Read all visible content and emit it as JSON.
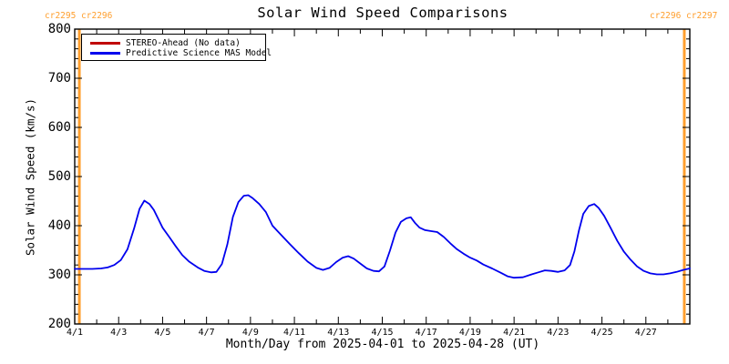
{
  "header": {
    "title": "Solar Wind Speed Comparisons",
    "cr_left": "cr2295 cr2296",
    "cr_right": "cr2296 cr2297",
    "cr_color": "#ff9f2e"
  },
  "axes": {
    "xlabel": "Month/Day from 2025-04-01 to 2025-04-28 (UT)",
    "ylabel": "Solar Wind Speed (km/s)",
    "y_ticks": [
      200,
      300,
      400,
      500,
      600,
      700,
      800
    ],
    "y_minor_step": 20,
    "x_tick_labels": [
      "4/1",
      "4/3",
      "4/5",
      "4/7",
      "4/9",
      "4/11",
      "4/13",
      "4/15",
      "4/17",
      "4/19",
      "4/21",
      "4/23",
      "4/25",
      "4/27"
    ],
    "x_tick_days": [
      1,
      3,
      5,
      7,
      9,
      11,
      13,
      15,
      17,
      19,
      21,
      23,
      25,
      27
    ],
    "frame_color": "#000000"
  },
  "legend": {
    "entries": [
      {
        "label": "STEREO-Ahead (No data)",
        "color": "#c00000"
      },
      {
        "label": "Predictive Science MAS Model",
        "color": "#0000ee"
      }
    ]
  },
  "chart_data": {
    "type": "line",
    "title": "Solar Wind Speed Comparisons",
    "xlabel": "Month/Day from 2025-04-01 to 2025-04-28 (UT)",
    "ylabel": "Solar Wind Speed (km/s)",
    "x_unit": "day of April 2025 (UT)",
    "xlim_days": [
      1,
      29
    ],
    "ylim": [
      200,
      800
    ],
    "grid": false,
    "legend_position": "top-left-inside",
    "series": [
      {
        "name": "STEREO-Ahead (No data)",
        "color": "#c00000",
        "points": []
      },
      {
        "name": "Predictive Science MAS Model",
        "color": "#0000ee",
        "points": [
          [
            1.0,
            312
          ],
          [
            1.4,
            312
          ],
          [
            1.8,
            312
          ],
          [
            2.2,
            313
          ],
          [
            2.5,
            315
          ],
          [
            2.8,
            320
          ],
          [
            3.1,
            330
          ],
          [
            3.4,
            352
          ],
          [
            3.7,
            394
          ],
          [
            3.95,
            434
          ],
          [
            4.17,
            451
          ],
          [
            4.4,
            444
          ],
          [
            4.6,
            432
          ],
          [
            4.8,
            414
          ],
          [
            5.0,
            396
          ],
          [
            5.3,
            377
          ],
          [
            5.6,
            358
          ],
          [
            5.9,
            340
          ],
          [
            6.2,
            327
          ],
          [
            6.6,
            315
          ],
          [
            6.9,
            308
          ],
          [
            7.2,
            305
          ],
          [
            7.45,
            306
          ],
          [
            7.7,
            322
          ],
          [
            7.95,
            362
          ],
          [
            8.2,
            418
          ],
          [
            8.45,
            448
          ],
          [
            8.7,
            461
          ],
          [
            8.9,
            462
          ],
          [
            9.1,
            456
          ],
          [
            9.4,
            444
          ],
          [
            9.7,
            428
          ],
          [
            10.0,
            400
          ],
          [
            10.4,
            381
          ],
          [
            10.8,
            362
          ],
          [
            11.2,
            344
          ],
          [
            11.6,
            327
          ],
          [
            12.0,
            314
          ],
          [
            12.3,
            310
          ],
          [
            12.6,
            314
          ],
          [
            12.9,
            326
          ],
          [
            13.2,
            335
          ],
          [
            13.45,
            338
          ],
          [
            13.7,
            333
          ],
          [
            14.0,
            323
          ],
          [
            14.3,
            313
          ],
          [
            14.6,
            308
          ],
          [
            14.85,
            307
          ],
          [
            15.1,
            317
          ],
          [
            15.35,
            349
          ],
          [
            15.6,
            386
          ],
          [
            15.85,
            408
          ],
          [
            16.1,
            415
          ],
          [
            16.3,
            417
          ],
          [
            16.5,
            405
          ],
          [
            16.7,
            396
          ],
          [
            16.95,
            391
          ],
          [
            17.2,
            389
          ],
          [
            17.5,
            387
          ],
          [
            17.8,
            377
          ],
          [
            18.1,
            364
          ],
          [
            18.4,
            352
          ],
          [
            18.7,
            343
          ],
          [
            19.0,
            335
          ],
          [
            19.3,
            329
          ],
          [
            19.6,
            321
          ],
          [
            20.0,
            313
          ],
          [
            20.4,
            304
          ],
          [
            20.7,
            297
          ],
          [
            21.0,
            294
          ],
          [
            21.4,
            295
          ],
          [
            21.8,
            301
          ],
          [
            22.1,
            305
          ],
          [
            22.4,
            309
          ],
          [
            22.7,
            308
          ],
          [
            23.0,
            306
          ],
          [
            23.3,
            309
          ],
          [
            23.55,
            320
          ],
          [
            23.75,
            348
          ],
          [
            23.95,
            390
          ],
          [
            24.15,
            424
          ],
          [
            24.4,
            440
          ],
          [
            24.65,
            444
          ],
          [
            24.85,
            436
          ],
          [
            25.1,
            420
          ],
          [
            25.4,
            395
          ],
          [
            25.7,
            369
          ],
          [
            26.0,
            347
          ],
          [
            26.3,
            331
          ],
          [
            26.6,
            317
          ],
          [
            26.9,
            308
          ],
          [
            27.2,
            303
          ],
          [
            27.5,
            301
          ],
          [
            27.8,
            301
          ],
          [
            28.1,
            303
          ],
          [
            28.4,
            306
          ],
          [
            28.7,
            310
          ],
          [
            29.0,
            313
          ]
        ]
      }
    ],
    "cr_boundaries": [
      {
        "day": 1.21,
        "labels": [
          "cr2295",
          "cr2296"
        ],
        "color": "#ff9f2e"
      },
      {
        "day": 28.75,
        "labels": [
          "cr2296",
          "cr2297"
        ],
        "color": "#ff9f2e"
      }
    ]
  }
}
